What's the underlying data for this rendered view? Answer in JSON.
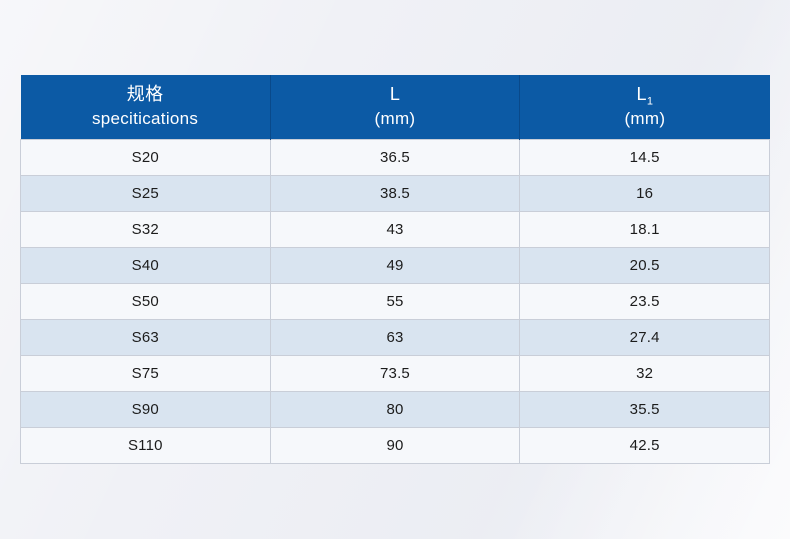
{
  "table": {
    "header": {
      "spec": {
        "line1": "规格",
        "line2": "specitications"
      },
      "l": {
        "line1": "L",
        "line2": "(mm)"
      },
      "l1": {
        "main": "L",
        "sub": "1",
        "line2": "(mm)"
      }
    },
    "rows": [
      {
        "spec": "S20",
        "l": "36.5",
        "l1": "14.5"
      },
      {
        "spec": "S25",
        "l": "38.5",
        "l1": "16"
      },
      {
        "spec": "S32",
        "l": "43",
        "l1": "18.1"
      },
      {
        "spec": "S40",
        "l": "49",
        "l1": "20.5"
      },
      {
        "spec": "S50",
        "l": "55",
        "l1": "23.5"
      },
      {
        "spec": "S63",
        "l": "63",
        "l1": "27.4"
      },
      {
        "spec": "S75",
        "l": "73.5",
        "l1": "32"
      },
      {
        "spec": "S90",
        "l": "80",
        "l1": "35.5"
      },
      {
        "spec": "S110",
        "l": "90",
        "l1": "42.5"
      }
    ]
  },
  "colors": {
    "header_bg": "#0c5aa5",
    "header_text": "#ffffff",
    "header_divider": "#09498a",
    "row_light": "#f6f8fb",
    "row_alt": "#d9e4f0",
    "cell_border": "#c9ced8",
    "body_text": "#1c1c1c",
    "page_bg": "#f0f1f6"
  },
  "chart_data": {
    "type": "table",
    "columns": [
      "规格 specitications",
      "L (mm)",
      "L1 (mm)"
    ],
    "rows": [
      [
        "S20",
        36.5,
        14.5
      ],
      [
        "S25",
        38.5,
        16
      ],
      [
        "S32",
        43,
        18.1
      ],
      [
        "S40",
        49,
        20.5
      ],
      [
        "S50",
        55,
        23.5
      ],
      [
        "S63",
        63,
        27.4
      ],
      [
        "S75",
        73.5,
        32
      ],
      [
        "S90",
        80,
        35.5
      ],
      [
        "S110",
        90,
        42.5
      ]
    ]
  }
}
